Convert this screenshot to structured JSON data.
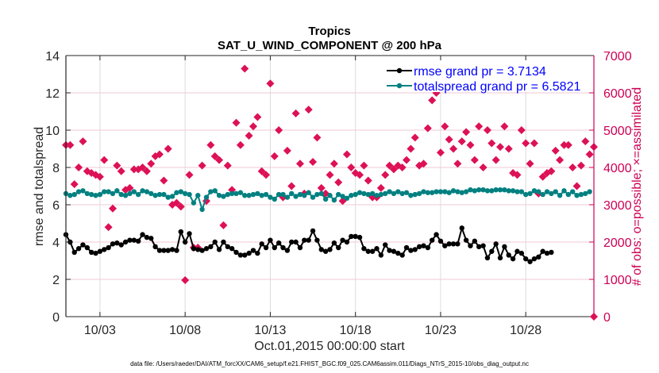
{
  "chart_data": {
    "type": "line",
    "title": "Tropics",
    "subtitle": "SAT_U_WIND_COMPONENT @ 200 hPa",
    "xlabel": "Oct.01,2015 00:00:00 start",
    "ylabel": "rmse and totalspread",
    "y2label": "# of obs: o=possible; ×=assimilated",
    "footnote": "data file: /Users/raeder/DAI/ATM_forcXX/CAM6_setup/f.e21.FHIST_BGC.f09_025.CAM6assim.011/Diags_NTrS_2015-10/obs_diag_output.nc",
    "xlim_days": [
      1,
      32
    ],
    "x_ticks": [
      {
        "day": 3,
        "label": "10/03"
      },
      {
        "day": 8,
        "label": "10/08"
      },
      {
        "day": 13,
        "label": "10/13"
      },
      {
        "day": 18,
        "label": "10/18"
      },
      {
        "day": 23,
        "label": "10/23"
      },
      {
        "day": 28,
        "label": "10/28"
      }
    ],
    "ylim": [
      0,
      14
    ],
    "y_ticks": [
      0,
      2,
      4,
      6,
      8,
      10,
      12,
      14
    ],
    "y2lim": [
      0,
      7000
    ],
    "y2_ticks": [
      0,
      1000,
      2000,
      3000,
      4000,
      5000,
      6000,
      7000
    ],
    "grid": true,
    "legend_position": "top-right",
    "colors": {
      "rmse": "#000000",
      "totalspread": "#008080",
      "obs": "#dd1155",
      "legend_text": "#0000ff",
      "right_axis": "#cc0055"
    },
    "series": [
      {
        "name": "rmse grand pr = 3.7134",
        "x_start_day": 1,
        "x_step_days": 0.25,
        "values": [
          4.4,
          4.0,
          3.45,
          3.65,
          3.85,
          3.7,
          3.45,
          3.4,
          3.5,
          3.6,
          3.7,
          3.9,
          3.95,
          3.85,
          4.0,
          4.1,
          4.1,
          4.05,
          4.4,
          4.25,
          4.2,
          3.75,
          3.55,
          3.55,
          3.55,
          3.6,
          3.55,
          4.55,
          4.0,
          4.45,
          3.65,
          3.6,
          3.55,
          3.65,
          3.75,
          4.0,
          3.6,
          4.0,
          3.75,
          3.65,
          3.45,
          3.3,
          3.3,
          3.4,
          3.55,
          3.4,
          3.9,
          3.7,
          4.1,
          3.7,
          3.95,
          3.7,
          3.55,
          4.0,
          4.0,
          3.7,
          4.1,
          4.1,
          4.6,
          4.1,
          3.6,
          3.5,
          3.6,
          3.95,
          3.7,
          4.1,
          4.0,
          4.3,
          4.3,
          4.25,
          3.65,
          3.5,
          3.5,
          3.65,
          3.3,
          3.85,
          3.55,
          3.5,
          3.4,
          3.3,
          3.7,
          3.55,
          3.6,
          3.75,
          3.8,
          3.7,
          4.1,
          4.4,
          4.05,
          3.8,
          3.9,
          3.9,
          3.9,
          4.75,
          4.1,
          3.8,
          4.05,
          3.75,
          3.8,
          3.15,
          3.5,
          3.9,
          3.15,
          3.75,
          3.3,
          3.1,
          3.5,
          3.4,
          3.1,
          2.95,
          3.1,
          3.2,
          3.5,
          3.4,
          3.45
        ]
      },
      {
        "name": "totalspread grand pr = 6.5821",
        "x_start_day": 1,
        "x_step_days": 0.25,
        "values": [
          6.6,
          6.5,
          6.55,
          6.7,
          6.75,
          6.6,
          6.55,
          6.5,
          6.55,
          6.7,
          6.7,
          6.6,
          6.75,
          6.55,
          6.5,
          6.6,
          6.7,
          6.55,
          6.75,
          6.7,
          6.6,
          6.5,
          6.55,
          6.55,
          6.4,
          6.45,
          6.65,
          6.7,
          6.6,
          6.55,
          6.1,
          6.5,
          5.75,
          6.4,
          6.7,
          6.75,
          6.5,
          6.45,
          6.55,
          6.6,
          6.6,
          6.65,
          6.5,
          6.5,
          6.55,
          6.6,
          6.5,
          6.55,
          6.4,
          6.3,
          6.55,
          6.55,
          6.4,
          6.6,
          6.45,
          6.55,
          6.5,
          6.65,
          6.4,
          6.55,
          6.6,
          6.3,
          6.5,
          6.25,
          6.55,
          6.45,
          6.35,
          6.5,
          6.55,
          6.65,
          6.6,
          6.55,
          6.6,
          6.5,
          6.55,
          6.6,
          6.7,
          6.6,
          6.7,
          6.6,
          6.65,
          6.5,
          6.55,
          6.6,
          6.7,
          6.65,
          6.65,
          6.7,
          6.7,
          6.7,
          6.65,
          6.75,
          6.7,
          6.65,
          6.7,
          6.8,
          6.75,
          6.8,
          6.8,
          6.75,
          6.75,
          6.8,
          6.8,
          6.8,
          6.75,
          6.75,
          6.7,
          6.7,
          6.55,
          6.6,
          6.75,
          6.7,
          6.55,
          6.7,
          6.6,
          6.7,
          6.5,
          6.75,
          6.55,
          6.7,
          6.5,
          6.55,
          6.6,
          6.7
        ]
      },
      {
        "name": "# obs possible",
        "axis": "right",
        "x_start_day": 1,
        "x_step_days": 0.25,
        "values": [
          4600,
          4600,
          3550,
          4000,
          4700,
          3900,
          3850,
          3800,
          3750,
          4200,
          2400,
          2900,
          4050,
          3900,
          3400,
          3450,
          3950,
          3950,
          4000,
          3900,
          4100,
          4300,
          4350,
          3650,
          4500,
          3000,
          3050,
          2950,
          980,
          3800,
          1850,
          1850,
          4050,
          3100,
          4600,
          4300,
          4200,
          2450,
          4050,
          3400,
          5200,
          4600,
          6650,
          4850,
          5100,
          5350,
          3900,
          3800,
          6250,
          4300,
          5000,
          3200,
          4450,
          3500,
          5450,
          4100,
          3300,
          5550,
          4150,
          4800,
          3450,
          3300,
          3800,
          4100,
          3600,
          3100,
          4350,
          4000,
          3850,
          3800,
          4050,
          3650,
          3200,
          3200,
          3450,
          3800,
          4050,
          3950,
          4050,
          4000,
          4200,
          4500,
          4800,
          4050,
          4100,
          5050,
          5800,
          6000,
          4400,
          5100,
          4750,
          4500,
          4100,
          4700,
          4950,
          4600,
          4200,
          5100,
          4000,
          5000,
          4650,
          4200,
          4550,
          5100,
          4500,
          3850,
          3800,
          5000,
          4650,
          4100,
          4650,
          3300,
          3750,
          3850,
          3900,
          4450,
          4200,
          4600,
          4600,
          4000,
          3500,
          4050,
          4700,
          4350,
          4550
        ]
      }
    ]
  }
}
